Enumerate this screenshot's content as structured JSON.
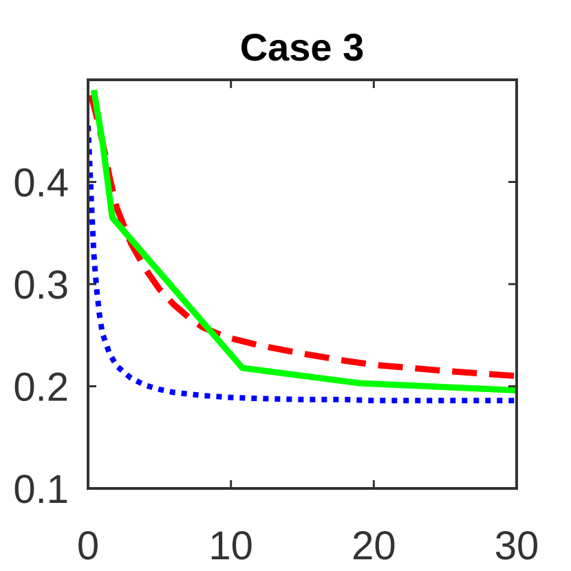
{
  "chart_data": {
    "type": "line",
    "title": "Case 3",
    "xlabel": "",
    "ylabel": "",
    "xlim": [
      0,
      30
    ],
    "ylim": [
      0.1,
      0.5
    ],
    "xticks": [
      0,
      10,
      20,
      30
    ],
    "xtick_labels": [
      "0",
      "10",
      "20",
      "30"
    ],
    "yticks": [
      0.1,
      0.2,
      0.3,
      0.4
    ],
    "ytick_labels": [
      "0.1",
      "0.2",
      "0.3",
      "0.4"
    ],
    "grid": false,
    "legend": "none",
    "series": [
      {
        "style": "dotted",
        "color": "#0000ff",
        "x": [
          0,
          0.2,
          0.4,
          0.6,
          0.8,
          1,
          1.5,
          2,
          3,
          4,
          5,
          6,
          8,
          10,
          12,
          15,
          18,
          20,
          25,
          30
        ],
        "y": [
          0.455,
          0.39,
          0.33,
          0.295,
          0.27,
          0.252,
          0.232,
          0.22,
          0.208,
          0.201,
          0.197,
          0.194,
          0.191,
          0.189,
          0.188,
          0.187,
          0.187,
          0.186,
          0.186,
          0.186
        ]
      },
      {
        "style": "dashed",
        "color": "#ff0000",
        "x": [
          0.2,
          0.5,
          1,
          1.5,
          2,
          3,
          4,
          5,
          6,
          7,
          8,
          9,
          10,
          12,
          15,
          18,
          20,
          25,
          30
        ],
        "y": [
          0.485,
          0.47,
          0.44,
          0.405,
          0.375,
          0.34,
          0.315,
          0.295,
          0.28,
          0.268,
          0.258,
          0.252,
          0.247,
          0.24,
          0.232,
          0.225,
          0.221,
          0.215,
          0.21
        ]
      },
      {
        "style": "solid",
        "color": "#00ff00",
        "x": [
          0.4,
          1,
          1.7,
          10.8,
          19,
          30
        ],
        "y": [
          0.49,
          0.44,
          0.365,
          0.218,
          0.203,
          0.196
        ]
      }
    ]
  }
}
